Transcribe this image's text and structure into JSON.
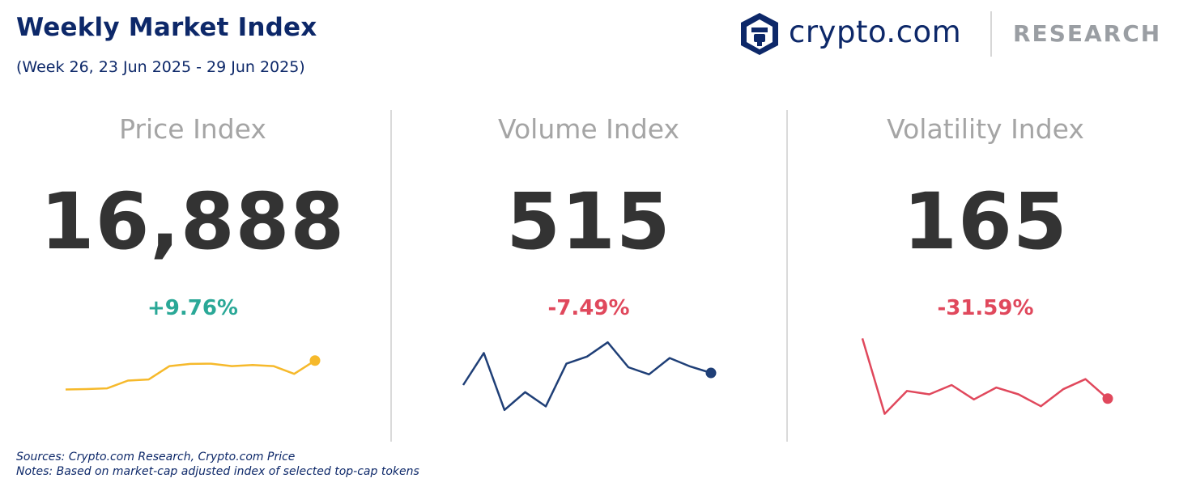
{
  "header": {
    "title": "Weekly Market Index",
    "subtitle": "(Week 26, 23 Jun 2025 - 29 Jun 2025)"
  },
  "logo": {
    "brand_text": "crypto.com",
    "research_text": "RESEARCH",
    "icon": "crypto-com-lion-shield-icon"
  },
  "colors": {
    "title": "#0d2869",
    "muted": "#a5a5a5",
    "value": "#333333",
    "positive": "#2aa897",
    "negative": "#e0485c",
    "price_line": "#f6b92b",
    "volume_line": "#1f3f77",
    "volatility_line": "#e0485c"
  },
  "chart_data": [
    {
      "type": "line",
      "title": "Price Index",
      "value": "16,888",
      "change": "+9.76%",
      "change_direction": "up",
      "color": "#f6b92b",
      "values": [
        15.4,
        15.42,
        15.45,
        15.8,
        15.85,
        16.45,
        16.55,
        16.56,
        16.45,
        16.5,
        16.45,
        16.1,
        16.7
      ],
      "ylim": [
        14,
        18
      ]
    },
    {
      "type": "line",
      "title": "Volume Index",
      "value": "515",
      "change": "-7.49%",
      "change_direction": "down",
      "color": "#1f3f77",
      "values": [
        520,
        565,
        485,
        510,
        490,
        550,
        560,
        580,
        545,
        535,
        558,
        546,
        537
      ],
      "ylim": [
        470,
        595
      ]
    },
    {
      "type": "line",
      "title": "Volatility Index",
      "value": "165",
      "change": "-31.59%",
      "change_direction": "down",
      "color": "#e0485c",
      "values": [
        247,
        158,
        185,
        181,
        192,
        175,
        189,
        181,
        167,
        187,
        199,
        176
      ],
      "ylim": [
        150,
        255
      ]
    }
  ],
  "footer": {
    "sources": "Sources: Crypto.com Research,  Crypto.com Price",
    "notes": "Notes: Based on market-cap adjusted index of selected top-cap tokens"
  }
}
